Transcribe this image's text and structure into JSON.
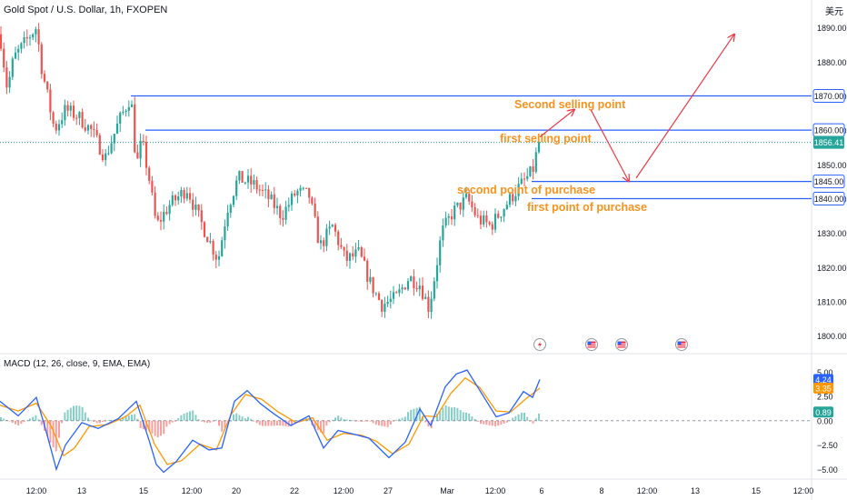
{
  "header": {
    "symbol_title": "Gold Spot / U.S. Dollar, 1h, FXOPEN",
    "currency": "美元"
  },
  "macd_panel": {
    "title": "MACD (12, 26, close, 9, EMA, EMA)",
    "badges": [
      {
        "value": "4.24",
        "color": "#2962ff"
      },
      {
        "value": "3.35",
        "color": "#ff9800"
      },
      {
        "value": "0.89",
        "color": "#26a69a"
      }
    ],
    "ticks": [
      "5.00",
      "2.50",
      "0.00",
      "−2.50",
      "−5.00"
    ]
  },
  "price_axis": {
    "ticks": [
      "1890.00",
      "1880.00",
      "1870.00",
      "1860.00",
      "1850.00",
      "1840.00",
      "1830.00",
      "1820.00",
      "1810.00",
      "1800.00"
    ],
    "badges": [
      {
        "value": "1870.00",
        "style": "outline"
      },
      {
        "value": "1860.00",
        "style": "outline"
      },
      {
        "value": "1856.41",
        "style": "solid"
      },
      {
        "value": "1845.00",
        "style": "outline"
      },
      {
        "value": "1840.00",
        "style": "outline"
      }
    ]
  },
  "time_axis": {
    "labels": [
      "12:00",
      "13",
      "15",
      "12:00",
      "20",
      "22",
      "12:00",
      "27",
      "Mar",
      "12:00",
      "6",
      "8",
      "12:00",
      "13",
      "15",
      "12:00"
    ]
  },
  "colors": {
    "up": "#26a69a",
    "down": "#ef5350",
    "level_line": "#2962ff",
    "annotation": "#f7931e",
    "arrow": "#f23645",
    "macd_line": "#2962ff",
    "signal_line": "#ff9800",
    "current_price": "#26a69a"
  },
  "chart_data": {
    "type": "candlestick",
    "ylim": [
      1795,
      1898
    ],
    "current_price": 1856.41,
    "close_path": [
      [
        0,
        1888
      ],
      [
        8,
        1872
      ],
      [
        15,
        1881
      ],
      [
        26,
        1885
      ],
      [
        34,
        1888
      ],
      [
        40,
        1890
      ],
      [
        46,
        1878
      ],
      [
        60,
        1860
      ],
      [
        72,
        1866
      ],
      [
        86,
        1864
      ],
      [
        100,
        1860
      ],
      [
        116,
        1852
      ],
      [
        130,
        1862
      ],
      [
        144,
        1870
      ],
      [
        150,
        1849
      ],
      [
        156,
        1857
      ],
      [
        164,
        1846
      ],
      [
        172,
        1832
      ],
      [
        186,
        1838
      ],
      [
        206,
        1843
      ],
      [
        216,
        1836
      ],
      [
        230,
        1828
      ],
      [
        240,
        1822
      ],
      [
        250,
        1837
      ],
      [
        262,
        1846
      ],
      [
        280,
        1844
      ],
      [
        296,
        1840
      ],
      [
        310,
        1835
      ],
      [
        326,
        1842
      ],
      [
        340,
        1841
      ],
      [
        352,
        1826
      ],
      [
        366,
        1832
      ],
      [
        380,
        1822
      ],
      [
        395,
        1824
      ],
      [
        408,
        1815
      ],
      [
        420,
        1809
      ],
      [
        436,
        1811
      ],
      [
        450,
        1817
      ],
      [
        462,
        1815
      ],
      [
        472,
        1808
      ],
      [
        480,
        1820
      ],
      [
        486,
        1830
      ],
      [
        498,
        1836
      ],
      [
        514,
        1840
      ],
      [
        526,
        1834
      ],
      [
        540,
        1832
      ],
      [
        556,
        1838
      ],
      [
        570,
        1843
      ],
      [
        586,
        1848
      ],
      [
        593,
        1856.41
      ]
    ],
    "levels": [
      {
        "price": 1870,
        "x_start": 144
      },
      {
        "price": 1860,
        "x_start": 160
      },
      {
        "price": 1845,
        "x_start": 585
      },
      {
        "price": 1840,
        "x_start": 585
      }
    ],
    "annotations": [
      {
        "text": "Second selling point",
        "x": 566,
        "price": 1867.5
      },
      {
        "text": "first selling point",
        "x": 550,
        "price": 1857.5
      },
      {
        "text": "second point of purchase",
        "x": 503,
        "price": 1842.5
      },
      {
        "text": "first point of purchase",
        "x": 580,
        "price": 1837.5
      }
    ],
    "projection": [
      [
        594,
        1858
      ],
      [
        632,
        1866
      ],
      [
        650,
        1866
      ],
      [
        692,
        1845
      ],
      [
        700,
        1846
      ],
      [
        808,
        1888
      ]
    ],
    "events": [
      {
        "x": 594,
        "kind": "flash"
      },
      {
        "x": 651,
        "kind": "us-flag"
      },
      {
        "x": 684,
        "kind": "us-flag"
      },
      {
        "x": 750,
        "kind": "us-flag"
      }
    ],
    "macd": {
      "ylim": [
        -6,
        6.8
      ],
      "macd_path": [
        [
          0,
          2.0
        ],
        [
          20,
          0.5
        ],
        [
          40,
          2.4
        ],
        [
          52,
          -1.5
        ],
        [
          62,
          -5.0
        ],
        [
          72,
          -2.5
        ],
        [
          90,
          -0.2
        ],
        [
          108,
          -0.8
        ],
        [
          130,
          0.2
        ],
        [
          150,
          2.0
        ],
        [
          164,
          -2.0
        ],
        [
          172,
          -4.5
        ],
        [
          180,
          -5.3
        ],
        [
          194,
          -4.2
        ],
        [
          212,
          -2.0
        ],
        [
          230,
          -3.0
        ],
        [
          244,
          -2.8
        ],
        [
          258,
          2.0
        ],
        [
          272,
          3.1
        ],
        [
          286,
          1.8
        ],
        [
          300,
          0.8
        ],
        [
          320,
          -0.5
        ],
        [
          340,
          0.5
        ],
        [
          356,
          -2.8
        ],
        [
          372,
          -1.0
        ],
        [
          390,
          -1.4
        ],
        [
          406,
          -1.8
        ],
        [
          428,
          -3.8
        ],
        [
          446,
          -2.2
        ],
        [
          462,
          1.2
        ],
        [
          474,
          -0.5
        ],
        [
          490,
          3.5
        ],
        [
          502,
          4.8
        ],
        [
          514,
          5.2
        ],
        [
          530,
          2.8
        ],
        [
          546,
          0.4
        ],
        [
          560,
          0.8
        ],
        [
          576,
          3.0
        ],
        [
          586,
          2.4
        ],
        [
          594,
          4.24
        ]
      ],
      "signal_path": [
        [
          0,
          1.6
        ],
        [
          20,
          1.0
        ],
        [
          40,
          1.8
        ],
        [
          56,
          -0.5
        ],
        [
          70,
          -3.6
        ],
        [
          82,
          -2.8
        ],
        [
          98,
          -0.6
        ],
        [
          118,
          -0.4
        ],
        [
          138,
          0.4
        ],
        [
          154,
          1.6
        ],
        [
          170,
          -2.4
        ],
        [
          184,
          -4.5
        ],
        [
          200,
          -4.1
        ],
        [
          220,
          -2.4
        ],
        [
          238,
          -3.0
        ],
        [
          254,
          0.6
        ],
        [
          270,
          2.7
        ],
        [
          288,
          2.2
        ],
        [
          306,
          0.9
        ],
        [
          326,
          -0.2
        ],
        [
          344,
          0.3
        ],
        [
          360,
          -2.0
        ],
        [
          378,
          -1.3
        ],
        [
          398,
          -1.5
        ],
        [
          414,
          -2.1
        ],
        [
          432,
          -3.4
        ],
        [
          450,
          -2.4
        ],
        [
          466,
          0.5
        ],
        [
          480,
          0.4
        ],
        [
          496,
          2.8
        ],
        [
          512,
          4.4
        ],
        [
          528,
          3.4
        ],
        [
          546,
          1.0
        ],
        [
          562,
          0.9
        ],
        [
          578,
          2.2
        ],
        [
          594,
          3.35
        ]
      ],
      "histogram_last": 0.89
    }
  }
}
